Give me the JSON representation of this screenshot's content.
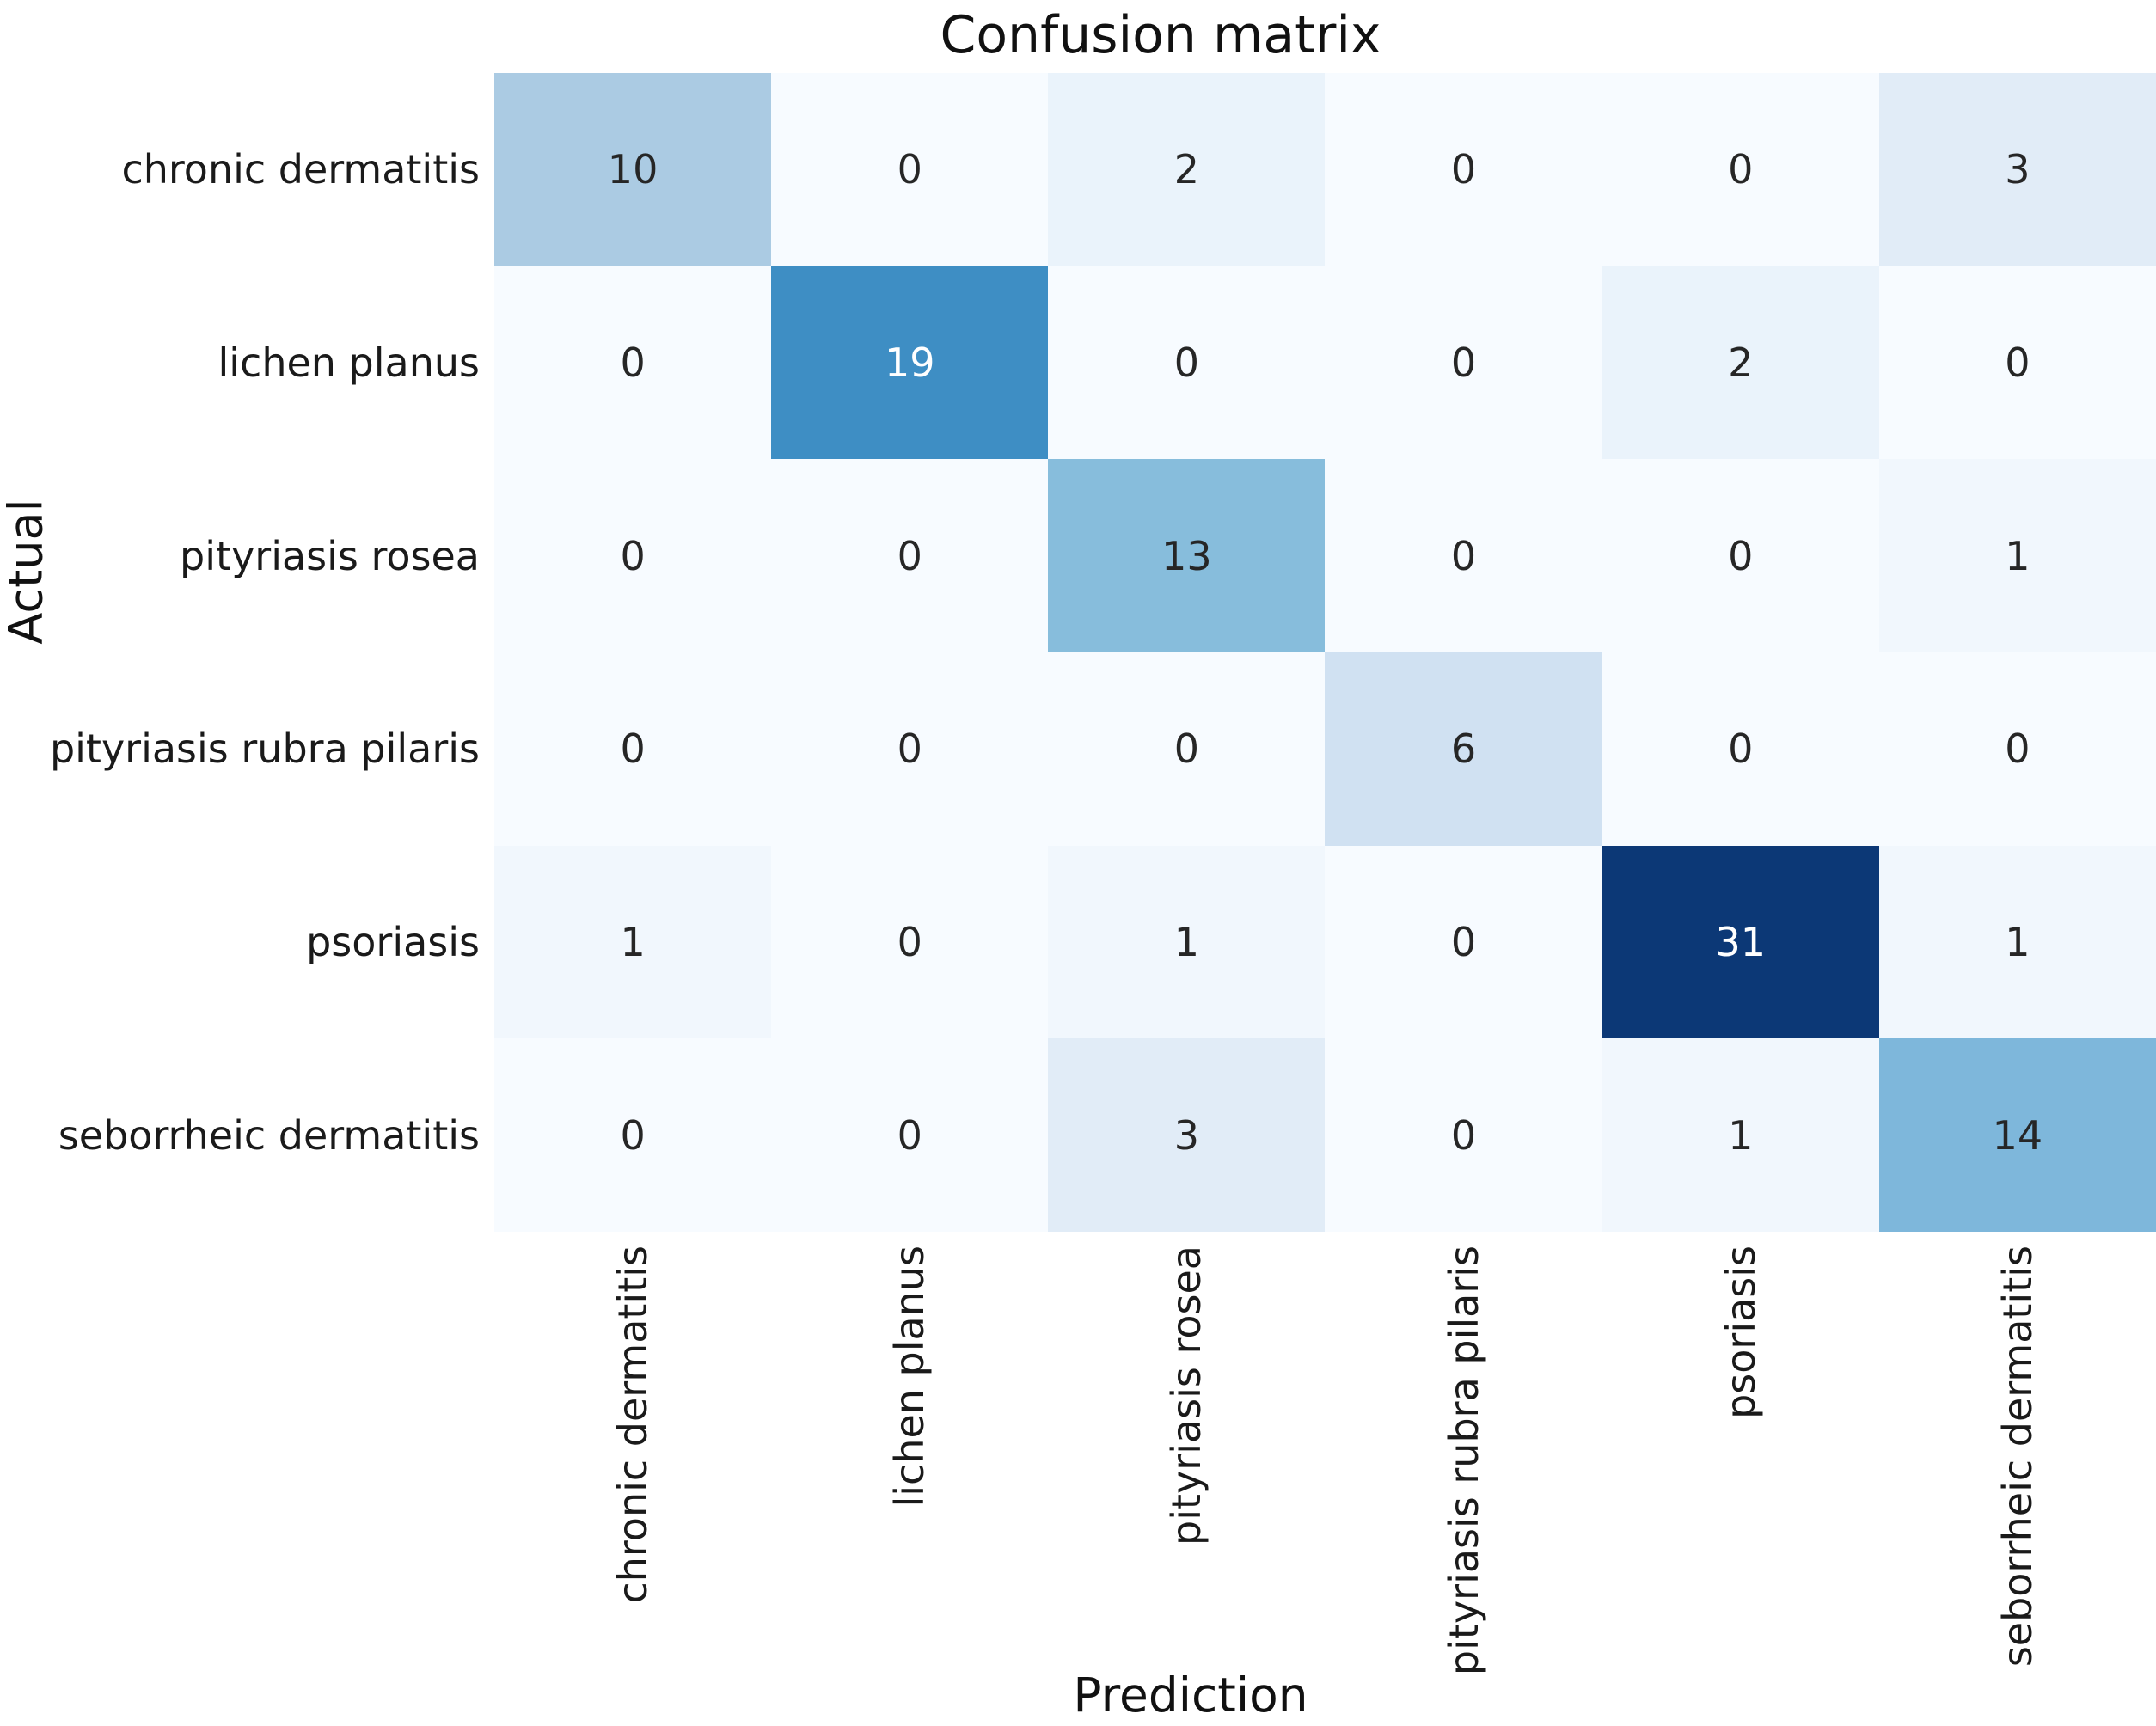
{
  "title": "Confusion matrix",
  "chart_data": {
    "type": "heatmap",
    "title": "Confusion matrix",
    "xlabel": "Prediction",
    "ylabel": "Actual",
    "x_categories": [
      "chronic dermatitis",
      "lichen planus",
      "pityriasis rosea",
      "pityriasis rubra pilaris",
      "psoriasis",
      "seborrheic dermatitis"
    ],
    "y_categories": [
      "chronic dermatitis",
      "lichen planus",
      "pityriasis rosea",
      "pityriasis rubra pilaris",
      "psoriasis",
      "seborrheic dermatitis"
    ],
    "matrix": [
      [
        10,
        0,
        2,
        0,
        0,
        3
      ],
      [
        0,
        19,
        0,
        0,
        2,
        0
      ],
      [
        0,
        0,
        13,
        0,
        0,
        1
      ],
      [
        0,
        0,
        0,
        6,
        0,
        0
      ],
      [
        1,
        0,
        1,
        0,
        31,
        1
      ],
      [
        0,
        0,
        3,
        0,
        1,
        14
      ]
    ],
    "vmin": 0,
    "vmax": 31,
    "colormap": "Blues",
    "legend": "none",
    "grid": false,
    "cell_colors": [
      [
        "#abcbe3",
        "#f7fbff",
        "#eaf3fb",
        "#f7fbff",
        "#f7fbff",
        "#e1ecf7"
      ],
      [
        "#f7fbff",
        "#3e8ec4",
        "#f7fbff",
        "#f7fbff",
        "#eaf3fb",
        "#f7fbff"
      ],
      [
        "#f7fbff",
        "#f7fbff",
        "#87bddc",
        "#f7fbff",
        "#f7fbff",
        "#f1f7fd"
      ],
      [
        "#f7fbff",
        "#f7fbff",
        "#f7fbff",
        "#d0e1f2",
        "#f7fbff",
        "#f7fbff"
      ],
      [
        "#f1f7fd",
        "#f7fbff",
        "#f1f7fd",
        "#f7fbff",
        "#0c3876",
        "#f1f7fd"
      ],
      [
        "#f7fbff",
        "#f7fbff",
        "#e1ecf7",
        "#f7fbff",
        "#f1f7fd",
        "#7eb7db"
      ]
    ],
    "cell_text_colors": [
      [
        "#262626",
        "#262626",
        "#262626",
        "#262626",
        "#262626",
        "#262626"
      ],
      [
        "#262626",
        "#ffffff",
        "#262626",
        "#262626",
        "#262626",
        "#262626"
      ],
      [
        "#262626",
        "#262626",
        "#262626",
        "#262626",
        "#262626",
        "#262626"
      ],
      [
        "#262626",
        "#262626",
        "#262626",
        "#262626",
        "#262626",
        "#262626"
      ],
      [
        "#262626",
        "#262626",
        "#262626",
        "#262626",
        "#ffffff",
        "#262626"
      ],
      [
        "#262626",
        "#262626",
        "#262626",
        "#262626",
        "#262626",
        "#262626"
      ]
    ]
  },
  "colors": {
    "background": "#ffffff",
    "label_text": "#1a1a1a",
    "annotation_dark": "#262626",
    "annotation_light": "#ffffff"
  }
}
